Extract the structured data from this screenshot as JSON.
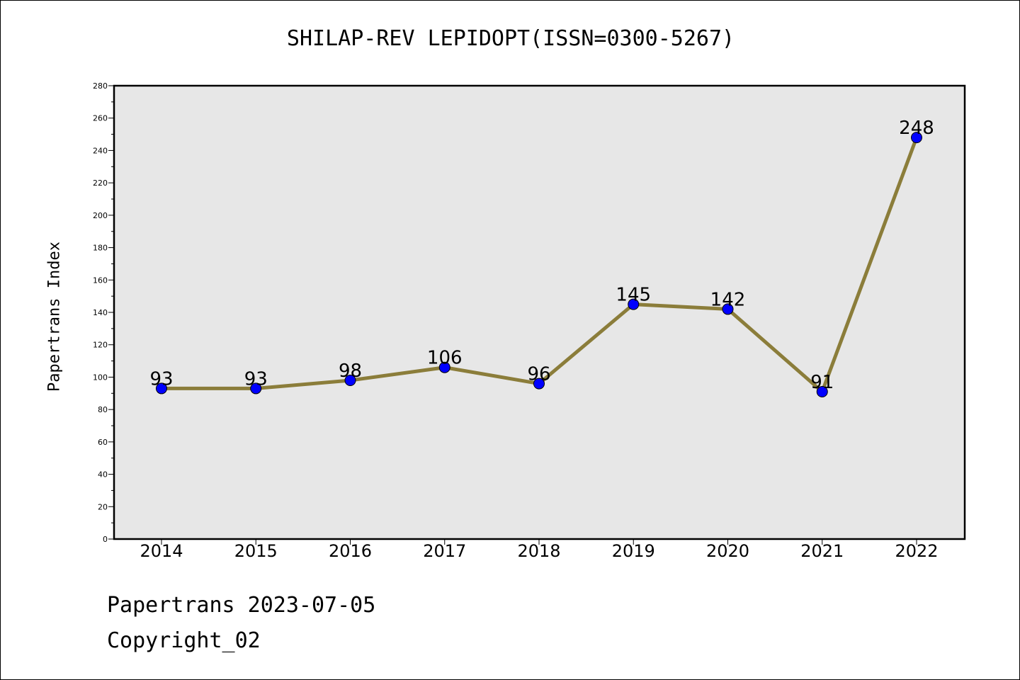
{
  "chart_data": {
    "type": "line",
    "title": "SHILAP-REV LEPIDOPT(ISSN=0300-5267)",
    "xlabel": "",
    "ylabel": "Papertrans Index",
    "categories": [
      "2014",
      "2015",
      "2016",
      "2017",
      "2018",
      "2019",
      "2020",
      "2021",
      "2022"
    ],
    "series": [
      {
        "values": [
          93,
          93,
          98,
          106,
          96,
          145,
          142,
          91,
          248
        ]
      }
    ],
    "data_labels": [
      "93",
      "93",
      "98",
      "106",
      "96",
      "145",
      "142",
      "91",
      "248"
    ],
    "ylim": [
      0,
      280
    ],
    "yticks": [
      0,
      20,
      40,
      60,
      80,
      100,
      120,
      140,
      160,
      180,
      200,
      220,
      240,
      260,
      280
    ],
    "grid": false,
    "legend": "none",
    "colors": {
      "line": "#8B7D3A",
      "marker": "#0000FF",
      "plot_background": "#E7E7E7"
    }
  },
  "footer": {
    "line1": "Papertrans 2023-07-05",
    "line2": "Copyright_02"
  }
}
